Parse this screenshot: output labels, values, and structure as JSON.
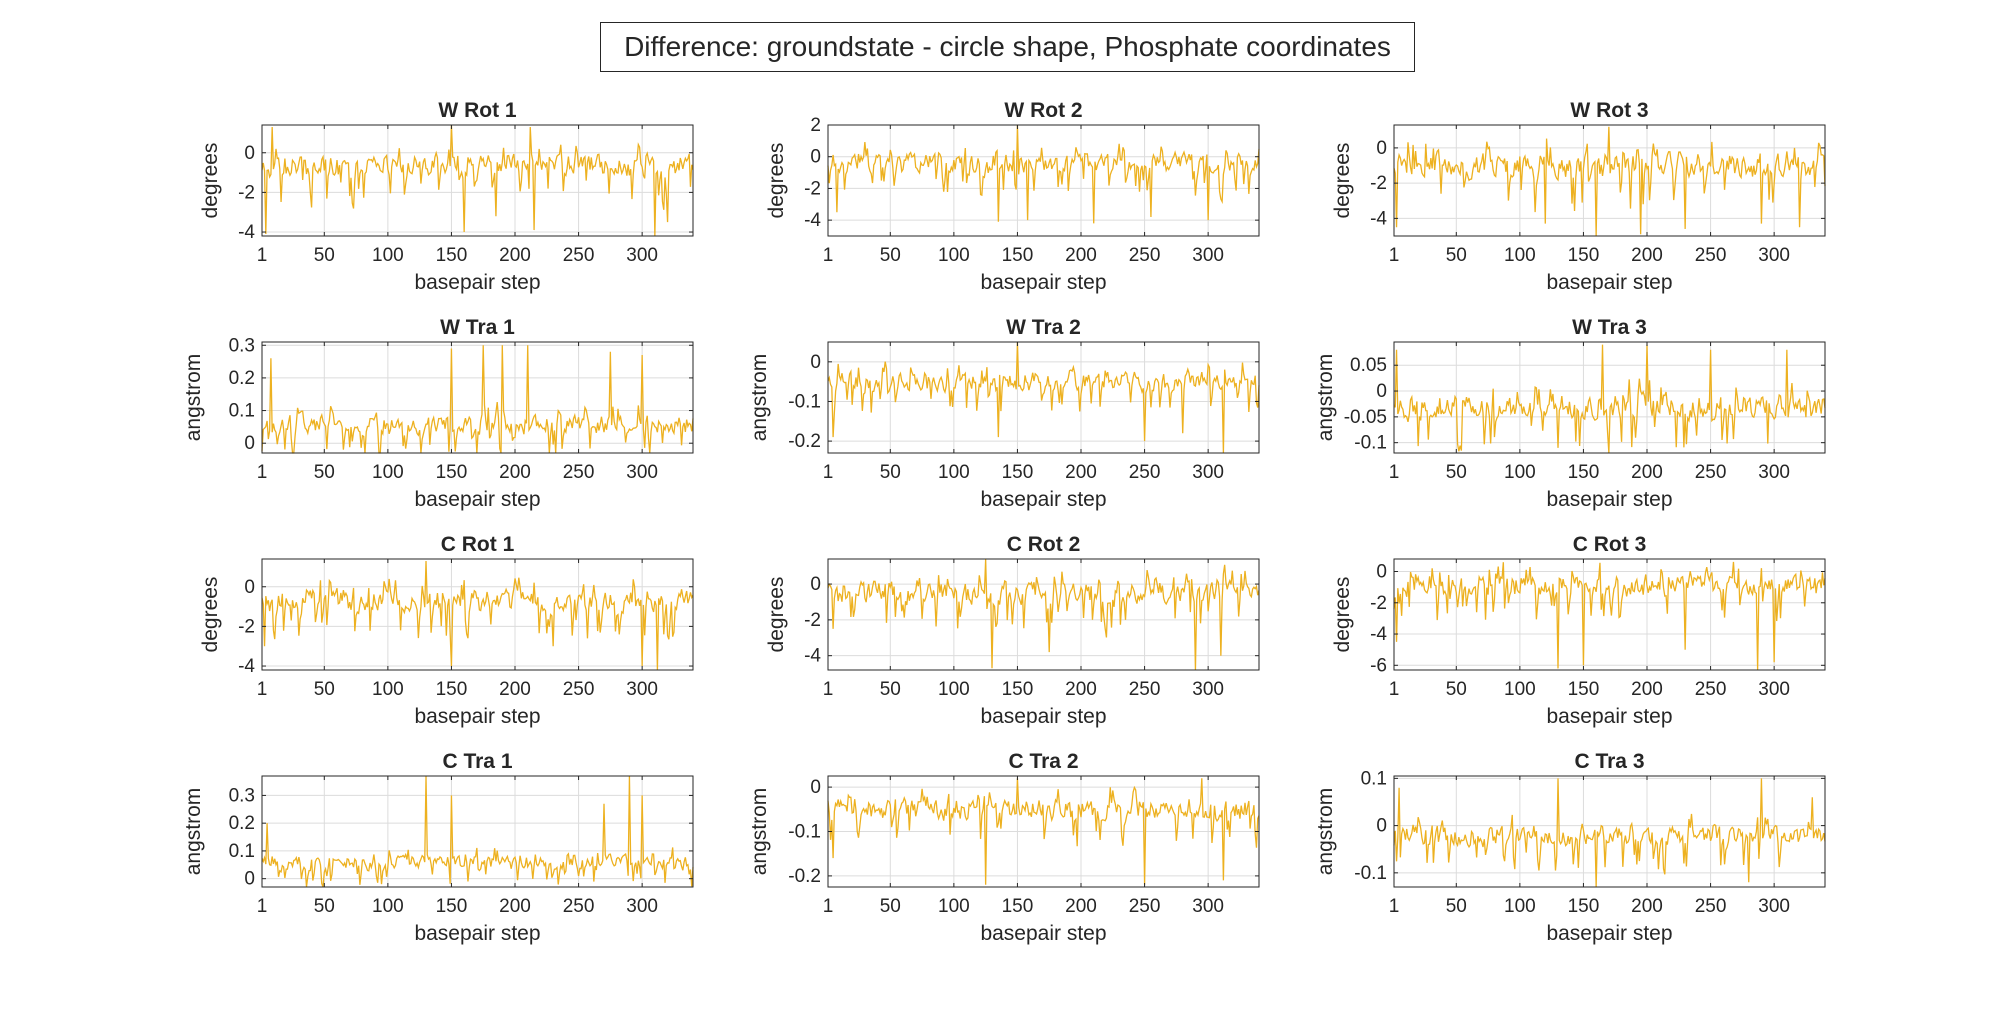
{
  "figure": {
    "suptitle": "Difference: groundstate - circle shape, Phosphate coordinates",
    "line_color": "#EDB120",
    "grid": true
  },
  "chart_data": [
    {
      "type": "line",
      "title": "W Rot 1",
      "xlabel": "basepair step",
      "ylabel": "degrees",
      "xlim": [
        1,
        340
      ],
      "ylim": [
        -4.2,
        1.4
      ],
      "xticks": [
        1,
        50,
        100,
        150,
        200,
        250,
        300
      ],
      "yticks": [
        0,
        -2,
        -4
      ],
      "n_points": 340,
      "mean": -0.6,
      "spread": 0.9,
      "extremes": [
        {
          "x": 4,
          "y": -4.1
        },
        {
          "x": 9,
          "y": 1.3
        },
        {
          "x": 150,
          "y": 1.4
        },
        {
          "x": 160,
          "y": -4.0
        },
        {
          "x": 185,
          "y": -3.2
        },
        {
          "x": 212,
          "y": 1.3
        },
        {
          "x": 215,
          "y": -3.9
        },
        {
          "x": 310,
          "y": -4.2
        },
        {
          "x": 320,
          "y": -3.5
        }
      ]
    },
    {
      "type": "line",
      "title": "W Rot 2",
      "xlabel": "basepair step",
      "ylabel": "degrees",
      "xlim": [
        1,
        340
      ],
      "ylim": [
        -5,
        2
      ],
      "xticks": [
        1,
        50,
        100,
        150,
        200,
        250,
        300
      ],
      "yticks": [
        2,
        0,
        -2,
        -4
      ],
      "n_points": 340,
      "mean": -0.4,
      "spread": 1.0,
      "extremes": [
        {
          "x": 8,
          "y": -3.5
        },
        {
          "x": 150,
          "y": 2.0
        },
        {
          "x": 135,
          "y": -4.1
        },
        {
          "x": 158,
          "y": -4.0
        },
        {
          "x": 210,
          "y": -4.2
        },
        {
          "x": 255,
          "y": -3.8
        },
        {
          "x": 300,
          "y": -4.0
        }
      ]
    },
    {
      "type": "line",
      "title": "W Rot 3",
      "xlabel": "basepair step",
      "ylabel": "degrees",
      "xlim": [
        1,
        340
      ],
      "ylim": [
        -5,
        1.3
      ],
      "xticks": [
        1,
        50,
        100,
        150,
        200,
        250,
        300
      ],
      "yticks": [
        0,
        -2,
        -4
      ],
      "n_points": 340,
      "mean": -1.0,
      "spread": 1.2,
      "extremes": [
        {
          "x": 3,
          "y": -4.5
        },
        {
          "x": 120,
          "y": -4.3
        },
        {
          "x": 160,
          "y": -5.0
        },
        {
          "x": 170,
          "y": 1.2
        },
        {
          "x": 195,
          "y": -4.9
        },
        {
          "x": 230,
          "y": -4.6
        },
        {
          "x": 290,
          "y": -4.3
        },
        {
          "x": 320,
          "y": -4.5
        }
      ]
    },
    {
      "type": "line",
      "title": "W Tra 1",
      "xlabel": "basepair step",
      "ylabel": "angstrom",
      "xlim": [
        1,
        340
      ],
      "ylim": [
        -0.03,
        0.31
      ],
      "xticks": [
        1,
        50,
        100,
        150,
        200,
        250,
        300
      ],
      "yticks": [
        0.3,
        0.2,
        0.1,
        0
      ],
      "n_points": 340,
      "mean": 0.06,
      "spread": 0.05,
      "extremes": [
        {
          "x": 8,
          "y": 0.26
        },
        {
          "x": 150,
          "y": 0.29
        },
        {
          "x": 170,
          "y": -0.03
        },
        {
          "x": 175,
          "y": 0.3
        },
        {
          "x": 190,
          "y": 0.3
        },
        {
          "x": 210,
          "y": 0.3
        },
        {
          "x": 275,
          "y": 0.28
        },
        {
          "x": 300,
          "y": 0.27
        }
      ]
    },
    {
      "type": "line",
      "title": "W Tra 2",
      "xlabel": "basepair step",
      "ylabel": "angstrom",
      "xlim": [
        1,
        340
      ],
      "ylim": [
        -0.23,
        0.05
      ],
      "xticks": [
        1,
        50,
        100,
        150,
        200,
        250,
        300
      ],
      "yticks": [
        0,
        -0.1,
        -0.2
      ],
      "n_points": 340,
      "mean": -0.05,
      "spread": 0.04,
      "extremes": [
        {
          "x": 5,
          "y": -0.19
        },
        {
          "x": 150,
          "y": 0.05
        },
        {
          "x": 135,
          "y": -0.19
        },
        {
          "x": 250,
          "y": -0.2
        },
        {
          "x": 312,
          "y": -0.23
        },
        {
          "x": 280,
          "y": -0.18
        }
      ]
    },
    {
      "type": "line",
      "title": "W Tra 3",
      "xlabel": "basepair step",
      "ylabel": "angstrom",
      "xlim": [
        1,
        340
      ],
      "ylim": [
        -0.12,
        0.095
      ],
      "xticks": [
        1,
        50,
        100,
        150,
        200,
        250,
        300
      ],
      "yticks": [
        0.05,
        0,
        -0.05,
        -0.1
      ],
      "n_points": 340,
      "mean": -0.03,
      "spread": 0.04,
      "extremes": [
        {
          "x": 3,
          "y": 0.08
        },
        {
          "x": 165,
          "y": 0.09
        },
        {
          "x": 170,
          "y": -0.12
        },
        {
          "x": 200,
          "y": 0.09
        },
        {
          "x": 130,
          "y": -0.11
        },
        {
          "x": 250,
          "y": 0.08
        },
        {
          "x": 310,
          "y": 0.08
        }
      ]
    },
    {
      "type": "line",
      "title": "C Rot 1",
      "xlabel": "basepair step",
      "ylabel": "degrees",
      "xlim": [
        1,
        340
      ],
      "ylim": [
        -4.2,
        1.4
      ],
      "xticks": [
        1,
        50,
        100,
        150,
        200,
        250,
        300
      ],
      "yticks": [
        0,
        -2,
        -4
      ],
      "n_points": 340,
      "mean": -0.7,
      "spread": 0.9,
      "extremes": [
        {
          "x": 3,
          "y": -3.0
        },
        {
          "x": 130,
          "y": 1.3
        },
        {
          "x": 150,
          "y": -4.0
        },
        {
          "x": 230,
          "y": -3.0
        },
        {
          "x": 300,
          "y": -4.0
        },
        {
          "x": 312,
          "y": -4.2
        }
      ]
    },
    {
      "type": "line",
      "title": "C Rot 2",
      "xlabel": "basepair step",
      "ylabel": "degrees",
      "xlim": [
        1,
        340
      ],
      "ylim": [
        -4.8,
        1.4
      ],
      "xticks": [
        1,
        50,
        100,
        150,
        200,
        250,
        300
      ],
      "yticks": [
        0,
        -2,
        -4
      ],
      "n_points": 340,
      "mean": -0.5,
      "spread": 1.0,
      "extremes": [
        {
          "x": 5,
          "y": -2.5
        },
        {
          "x": 125,
          "y": 1.4
        },
        {
          "x": 130,
          "y": -4.7
        },
        {
          "x": 175,
          "y": -3.8
        },
        {
          "x": 290,
          "y": -4.8
        },
        {
          "x": 310,
          "y": -4.0
        }
      ]
    },
    {
      "type": "line",
      "title": "C Rot 3",
      "xlabel": "basepair step",
      "ylabel": "degrees",
      "xlim": [
        1,
        340
      ],
      "ylim": [
        -6.3,
        0.8
      ],
      "xticks": [
        1,
        50,
        100,
        150,
        200,
        250,
        300
      ],
      "yticks": [
        0,
        -2,
        -4,
        -6
      ],
      "n_points": 340,
      "mean": -0.9,
      "spread": 1.1,
      "extremes": [
        {
          "x": 3,
          "y": -4.5
        },
        {
          "x": 130,
          "y": -6.2
        },
        {
          "x": 150,
          "y": -6.0
        },
        {
          "x": 230,
          "y": -5.0
        },
        {
          "x": 287,
          "y": -6.3
        },
        {
          "x": 300,
          "y": -5.8
        }
      ]
    },
    {
      "type": "line",
      "title": "C Tra 1",
      "xlabel": "basepair step",
      "ylabel": "angstrom",
      "xlim": [
        1,
        340
      ],
      "ylim": [
        -0.03,
        0.37
      ],
      "xticks": [
        1,
        50,
        100,
        150,
        200,
        250,
        300
      ],
      "yticks": [
        0.3,
        0.2,
        0.1,
        0
      ],
      "n_points": 340,
      "mean": 0.06,
      "spread": 0.04,
      "extremes": [
        {
          "x": 5,
          "y": 0.2
        },
        {
          "x": 130,
          "y": 0.37
        },
        {
          "x": 150,
          "y": 0.3
        },
        {
          "x": 270,
          "y": 0.27
        },
        {
          "x": 290,
          "y": 0.37
        },
        {
          "x": 300,
          "y": 0.3
        }
      ]
    },
    {
      "type": "line",
      "title": "C Tra 2",
      "xlabel": "basepair step",
      "ylabel": "angstrom",
      "xlim": [
        1,
        340
      ],
      "ylim": [
        -0.225,
        0.025
      ],
      "xticks": [
        1,
        50,
        100,
        150,
        200,
        250,
        300
      ],
      "yticks": [
        0,
        -0.1,
        -0.2
      ],
      "n_points": 340,
      "mean": -0.05,
      "spread": 0.04,
      "extremes": [
        {
          "x": 5,
          "y": -0.16
        },
        {
          "x": 125,
          "y": -0.22
        },
        {
          "x": 150,
          "y": 0.02
        },
        {
          "x": 250,
          "y": -0.22
        },
        {
          "x": 295,
          "y": 0.02
        },
        {
          "x": 312,
          "y": -0.21
        }
      ]
    },
    {
      "type": "line",
      "title": "C Tra 3",
      "xlabel": "basepair step",
      "ylabel": "angstrom",
      "xlim": [
        1,
        340
      ],
      "ylim": [
        -0.13,
        0.105
      ],
      "xticks": [
        1,
        50,
        100,
        150,
        200,
        250,
        300
      ],
      "yticks": [
        0.1,
        0,
        -0.1
      ],
      "n_points": 340,
      "mean": -0.02,
      "spread": 0.035,
      "extremes": [
        {
          "x": 5,
          "y": 0.08
        },
        {
          "x": 130,
          "y": 0.1
        },
        {
          "x": 160,
          "y": -0.13
        },
        {
          "x": 290,
          "y": 0.1
        },
        {
          "x": 280,
          "y": -0.12
        },
        {
          "x": 330,
          "y": 0.06
        }
      ]
    }
  ]
}
